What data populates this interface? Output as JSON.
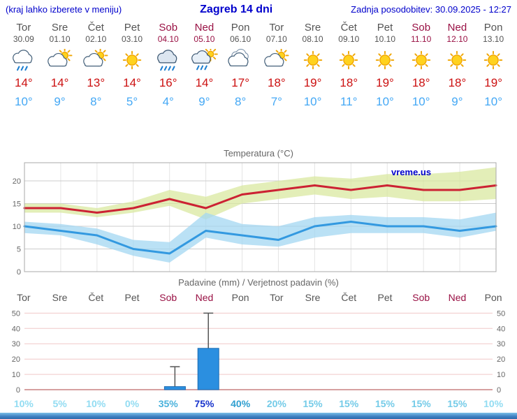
{
  "header": {
    "hint": "(kraj lahko izberete v meniju)",
    "title": "Zagreb 14 dni",
    "updated": "Zadnja posodobitev: 30.09.2025 - 12:27"
  },
  "colors": {
    "accent_blue": "#0000cc",
    "day_gray": "#555555",
    "weekend_red": "#991144",
    "temp_max_red": "#cc1111",
    "temp_min_blue": "#44a8f5",
    "bar_blue": "#2b8fe0"
  },
  "days": [
    {
      "name": "Tor",
      "date": "30.09",
      "weekend": false,
      "icon": "rain-cloud",
      "tmax": "14°",
      "tmin": "10°"
    },
    {
      "name": "Sre",
      "date": "01.10",
      "weekend": false,
      "icon": "partly-cloudy",
      "tmax": "14°",
      "tmin": "9°"
    },
    {
      "name": "Čet",
      "date": "02.10",
      "weekend": false,
      "icon": "partly-cloudy",
      "tmax": "13°",
      "tmin": "8°"
    },
    {
      "name": "Pet",
      "date": "03.10",
      "weekend": false,
      "icon": "sunny",
      "tmax": "14°",
      "tmin": "5°"
    },
    {
      "name": "Sob",
      "date": "04.10",
      "weekend": true,
      "icon": "rain",
      "tmax": "16°",
      "tmin": "4°"
    },
    {
      "name": "Ned",
      "date": "05.10",
      "weekend": true,
      "icon": "rain-sun",
      "tmax": "14°",
      "tmin": "9°"
    },
    {
      "name": "Pon",
      "date": "06.10",
      "weekend": false,
      "icon": "cloudy",
      "tmax": "17°",
      "tmin": "8°"
    },
    {
      "name": "Tor",
      "date": "07.10",
      "weekend": false,
      "icon": "partly-cloudy",
      "tmax": "18°",
      "tmin": "7°"
    },
    {
      "name": "Sre",
      "date": "08.10",
      "weekend": false,
      "icon": "sunny",
      "tmax": "19°",
      "tmin": "10°"
    },
    {
      "name": "Čet",
      "date": "09.10",
      "weekend": false,
      "icon": "sunny",
      "tmax": "18°",
      "tmin": "11°"
    },
    {
      "name": "Pet",
      "date": "10.10",
      "weekend": false,
      "icon": "sunny",
      "tmax": "19°",
      "tmin": "10°"
    },
    {
      "name": "Sob",
      "date": "11.10",
      "weekend": true,
      "icon": "sunny",
      "tmax": "18°",
      "tmin": "10°"
    },
    {
      "name": "Ned",
      "date": "12.10",
      "weekend": true,
      "icon": "sunny",
      "tmax": "18°",
      "tmin": "9°"
    },
    {
      "name": "Pon",
      "date": "13.10",
      "weekend": false,
      "icon": "sunny",
      "tmax": "19°",
      "tmin": "10°"
    }
  ],
  "chart_data": [
    {
      "type": "line",
      "title": "Temperatura (°C)",
      "x_labels": [
        "Tor",
        "Sre",
        "Čet",
        "Pet",
        "Sob",
        "Ned",
        "Pon",
        "Tor",
        "Sre",
        "Čet",
        "Pet",
        "Sob",
        "Ned",
        "Pon"
      ],
      "series": [
        {
          "name": "Max temperatura",
          "values": [
            14,
            14,
            13,
            14,
            16,
            14,
            17,
            18,
            19,
            18,
            19,
            18,
            18,
            19
          ],
          "color": "#cc2233"
        },
        {
          "name": "Min temperatura",
          "values": [
            10,
            9,
            8,
            5,
            4,
            9,
            8,
            7,
            10,
            11,
            10,
            10,
            9,
            10
          ],
          "color": "#3399e0"
        }
      ],
      "bands": [
        {
          "name": "max-range",
          "color": "#d9e8a0",
          "upper": [
            15,
            15,
            14,
            15.5,
            18,
            16.5,
            19,
            20,
            21,
            20.5,
            21.5,
            21.5,
            22,
            23
          ],
          "lower": [
            13,
            13,
            12,
            13,
            14.5,
            11.5,
            15,
            16,
            17,
            16,
            16.5,
            15.5,
            15.5,
            16
          ]
        },
        {
          "name": "min-range",
          "color": "#a3d7f2",
          "upper": [
            11,
            10.5,
            9.5,
            7,
            6.5,
            13,
            10.5,
            10,
            12,
            12.5,
            12,
            12,
            11.5,
            13
          ],
          "lower": [
            8.5,
            8,
            6,
            3.5,
            2,
            7.5,
            6,
            5.5,
            7.5,
            8.5,
            8.5,
            8.5,
            7.5,
            9
          ]
        }
      ],
      "ylim": [
        0,
        24
      ],
      "yticks": [
        0,
        5,
        10,
        15,
        20
      ],
      "grid": true,
      "watermark": "vreme.us"
    },
    {
      "type": "bar",
      "title": "Padavine (mm) / Verjetnost padavin (%)",
      "categories": [
        "Tor",
        "Sre",
        "Čet",
        "Pet",
        "Sob",
        "Ned",
        "Pon",
        "Tor",
        "Sre",
        "Čet",
        "Pet",
        "Sob",
        "Ned",
        "Pon"
      ],
      "values_mm": [
        0,
        0,
        0,
        0,
        2,
        27,
        0,
        0,
        0,
        0,
        0,
        0,
        0,
        0
      ],
      "whisker_max_mm": [
        0,
        0,
        0,
        0,
        15,
        50,
        0,
        0,
        0,
        0,
        0,
        0,
        0,
        0
      ],
      "probabilities_pct": [
        10,
        5,
        10,
        0,
        35,
        75,
        40,
        20,
        15,
        15,
        15,
        15,
        15,
        10
      ],
      "ylim": [
        0,
        52
      ],
      "yticks": [
        0,
        10,
        20,
        30,
        40,
        50
      ],
      "grid": true
    }
  ]
}
